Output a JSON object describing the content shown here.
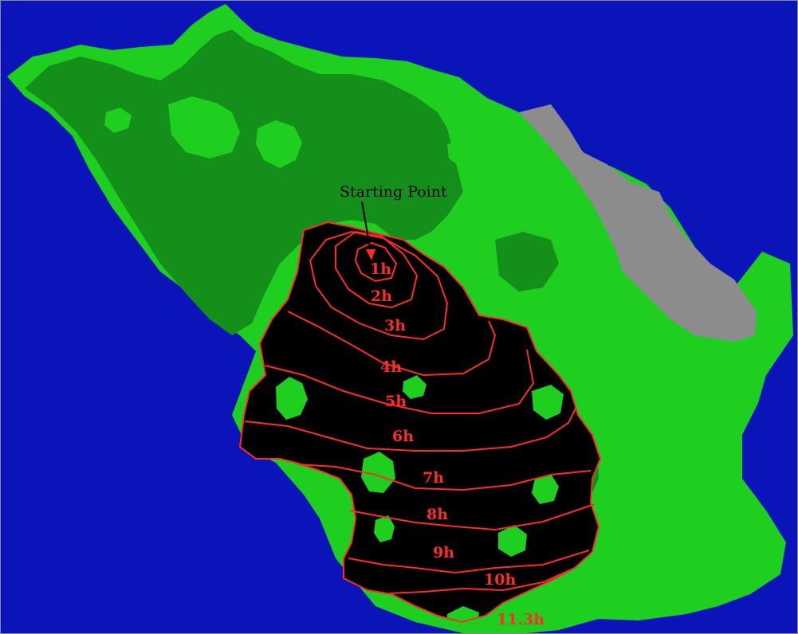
{
  "map": {
    "colors": {
      "water": "#0a14b8",
      "land_light": "#1fcf1f",
      "land_dark": "#138f1a",
      "rock": "#8c8c8c",
      "burned": "#000000",
      "isochrone": "#ff2a2a",
      "annotation": "#000000"
    },
    "starting_point_label": "Starting Point",
    "isochrones": [
      {
        "label": "1h"
      },
      {
        "label": "2h"
      },
      {
        "label": "3h"
      },
      {
        "label": "4h"
      },
      {
        "label": "5h"
      },
      {
        "label": "6h"
      },
      {
        "label": "7h"
      },
      {
        "label": "8h"
      },
      {
        "label": "9h"
      },
      {
        "label": "10h"
      },
      {
        "label": "11.3h"
      }
    ]
  }
}
